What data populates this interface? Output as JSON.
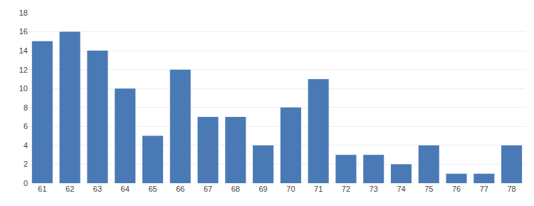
{
  "chart_data": {
    "type": "bar",
    "categories": [
      "61",
      "62",
      "63",
      "64",
      "65",
      "66",
      "67",
      "68",
      "69",
      "70",
      "71",
      "72",
      "73",
      "74",
      "75",
      "76",
      "77",
      "78"
    ],
    "values": [
      15,
      16,
      14,
      10,
      5,
      12,
      7,
      7,
      4,
      8,
      11,
      3,
      3,
      2,
      4,
      1,
      1,
      4
    ],
    "color": "#4a7ab5",
    "ylim": [
      0,
      18
    ],
    "yticks": [
      0,
      2,
      4,
      6,
      8,
      10,
      12,
      14,
      16,
      18
    ],
    "grid": true
  }
}
